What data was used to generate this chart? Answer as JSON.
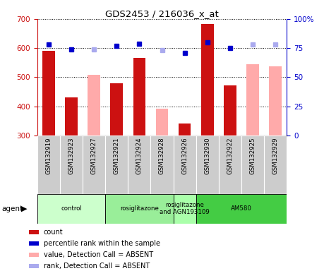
{
  "title": "GDS2453 / 216036_x_at",
  "samples": [
    "GSM132919",
    "GSM132923",
    "GSM132927",
    "GSM132921",
    "GSM132924",
    "GSM132928",
    "GSM132926",
    "GSM132930",
    "GSM132922",
    "GSM132925",
    "GSM132929"
  ],
  "counts": [
    590,
    430,
    null,
    480,
    567,
    null,
    340,
    683,
    472,
    null,
    null
  ],
  "counts_absent": [
    null,
    null,
    508,
    null,
    null,
    392,
    null,
    null,
    null,
    545,
    538
  ],
  "ranks": [
    78,
    74,
    null,
    77,
    79,
    null,
    71,
    80,
    75,
    null,
    null
  ],
  "ranks_absent": [
    null,
    null,
    74,
    null,
    null,
    73,
    null,
    null,
    null,
    78,
    78
  ],
  "ylim_left": [
    300,
    700
  ],
  "ylim_right": [
    0,
    100
  ],
  "yticks_left": [
    300,
    400,
    500,
    600,
    700
  ],
  "yticks_right": [
    0,
    25,
    50,
    75,
    100
  ],
  "ytick_labels_right": [
    "0",
    "25",
    "50",
    "75",
    "100%"
  ],
  "bar_color_present": "#cc1111",
  "bar_color_absent": "#ffaaaa",
  "dot_color_present": "#0000cc",
  "dot_color_absent": "#aaaaee",
  "groups": [
    {
      "label": "control",
      "start": 0,
      "end": 3,
      "color": "#ccffcc"
    },
    {
      "label": "rosiglitazone",
      "start": 3,
      "end": 6,
      "color": "#99ee99"
    },
    {
      "label": "rosiglitazone\nand AGN193109",
      "start": 6,
      "end": 7,
      "color": "#aaffaa"
    },
    {
      "label": "AM580",
      "start": 7,
      "end": 11,
      "color": "#44cc44"
    }
  ],
  "legend_items": [
    {
      "label": "count",
      "color": "#cc1111"
    },
    {
      "label": "percentile rank within the sample",
      "color": "#0000cc"
    },
    {
      "label": "value, Detection Call = ABSENT",
      "color": "#ffaaaa"
    },
    {
      "label": "rank, Detection Call = ABSENT",
      "color": "#aaaaee"
    }
  ],
  "agent_label": "agent",
  "left_tick_color": "#cc1111",
  "right_tick_color": "#0000cc",
  "sample_box_color": "#cccccc",
  "chart_bg_color": "#ffffff"
}
